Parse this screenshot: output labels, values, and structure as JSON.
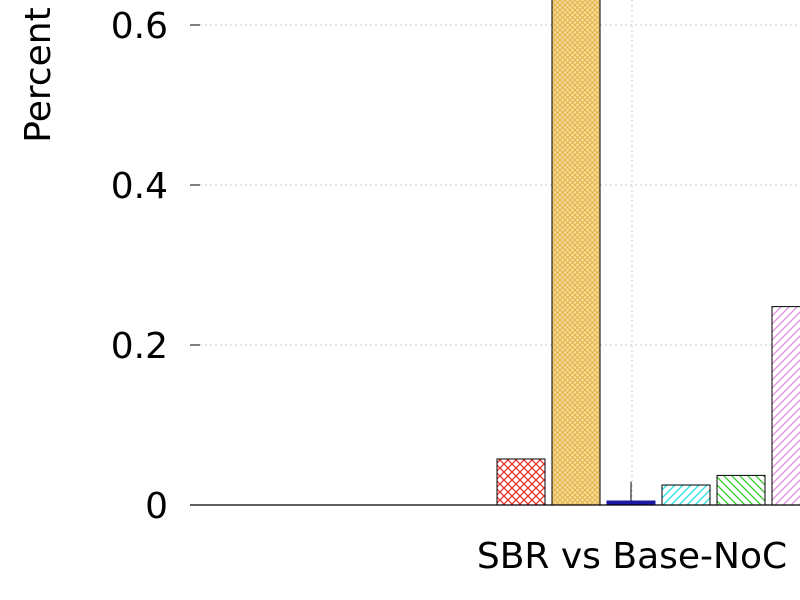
{
  "chart_data": {
    "type": "bar",
    "ylabel": "Percent",
    "categories": [
      "SBR vs Base-NoC"
    ],
    "ylim": [
      0,
      0.6
    ],
    "yticks": [
      0,
      0.2,
      0.4,
      0.6
    ],
    "ytick_labels": [
      "0",
      "0.2",
      "0.4",
      "0.6"
    ],
    "grid": true,
    "series": [
      {
        "values": [
          0.0575
        ],
        "color": "#e8302c",
        "pattern": "crosshatch"
      },
      {
        "values": [
          0.65
        ],
        "color": "#e6b24a",
        "pattern": "dense-crosshatch"
      },
      {
        "values": [
          0.005
        ],
        "color": "#1a1aa6",
        "pattern": "solid",
        "error": 0.024
      },
      {
        "values": [
          0.025
        ],
        "color": "#33e0e0",
        "pattern": "diagonal-left"
      },
      {
        "values": [
          0.037
        ],
        "color": "#3ad13a",
        "pattern": "diagonal-right"
      },
      {
        "values": [
          0.248
        ],
        "color": "#e08ae0",
        "pattern": "diagonal-left"
      }
    ]
  }
}
